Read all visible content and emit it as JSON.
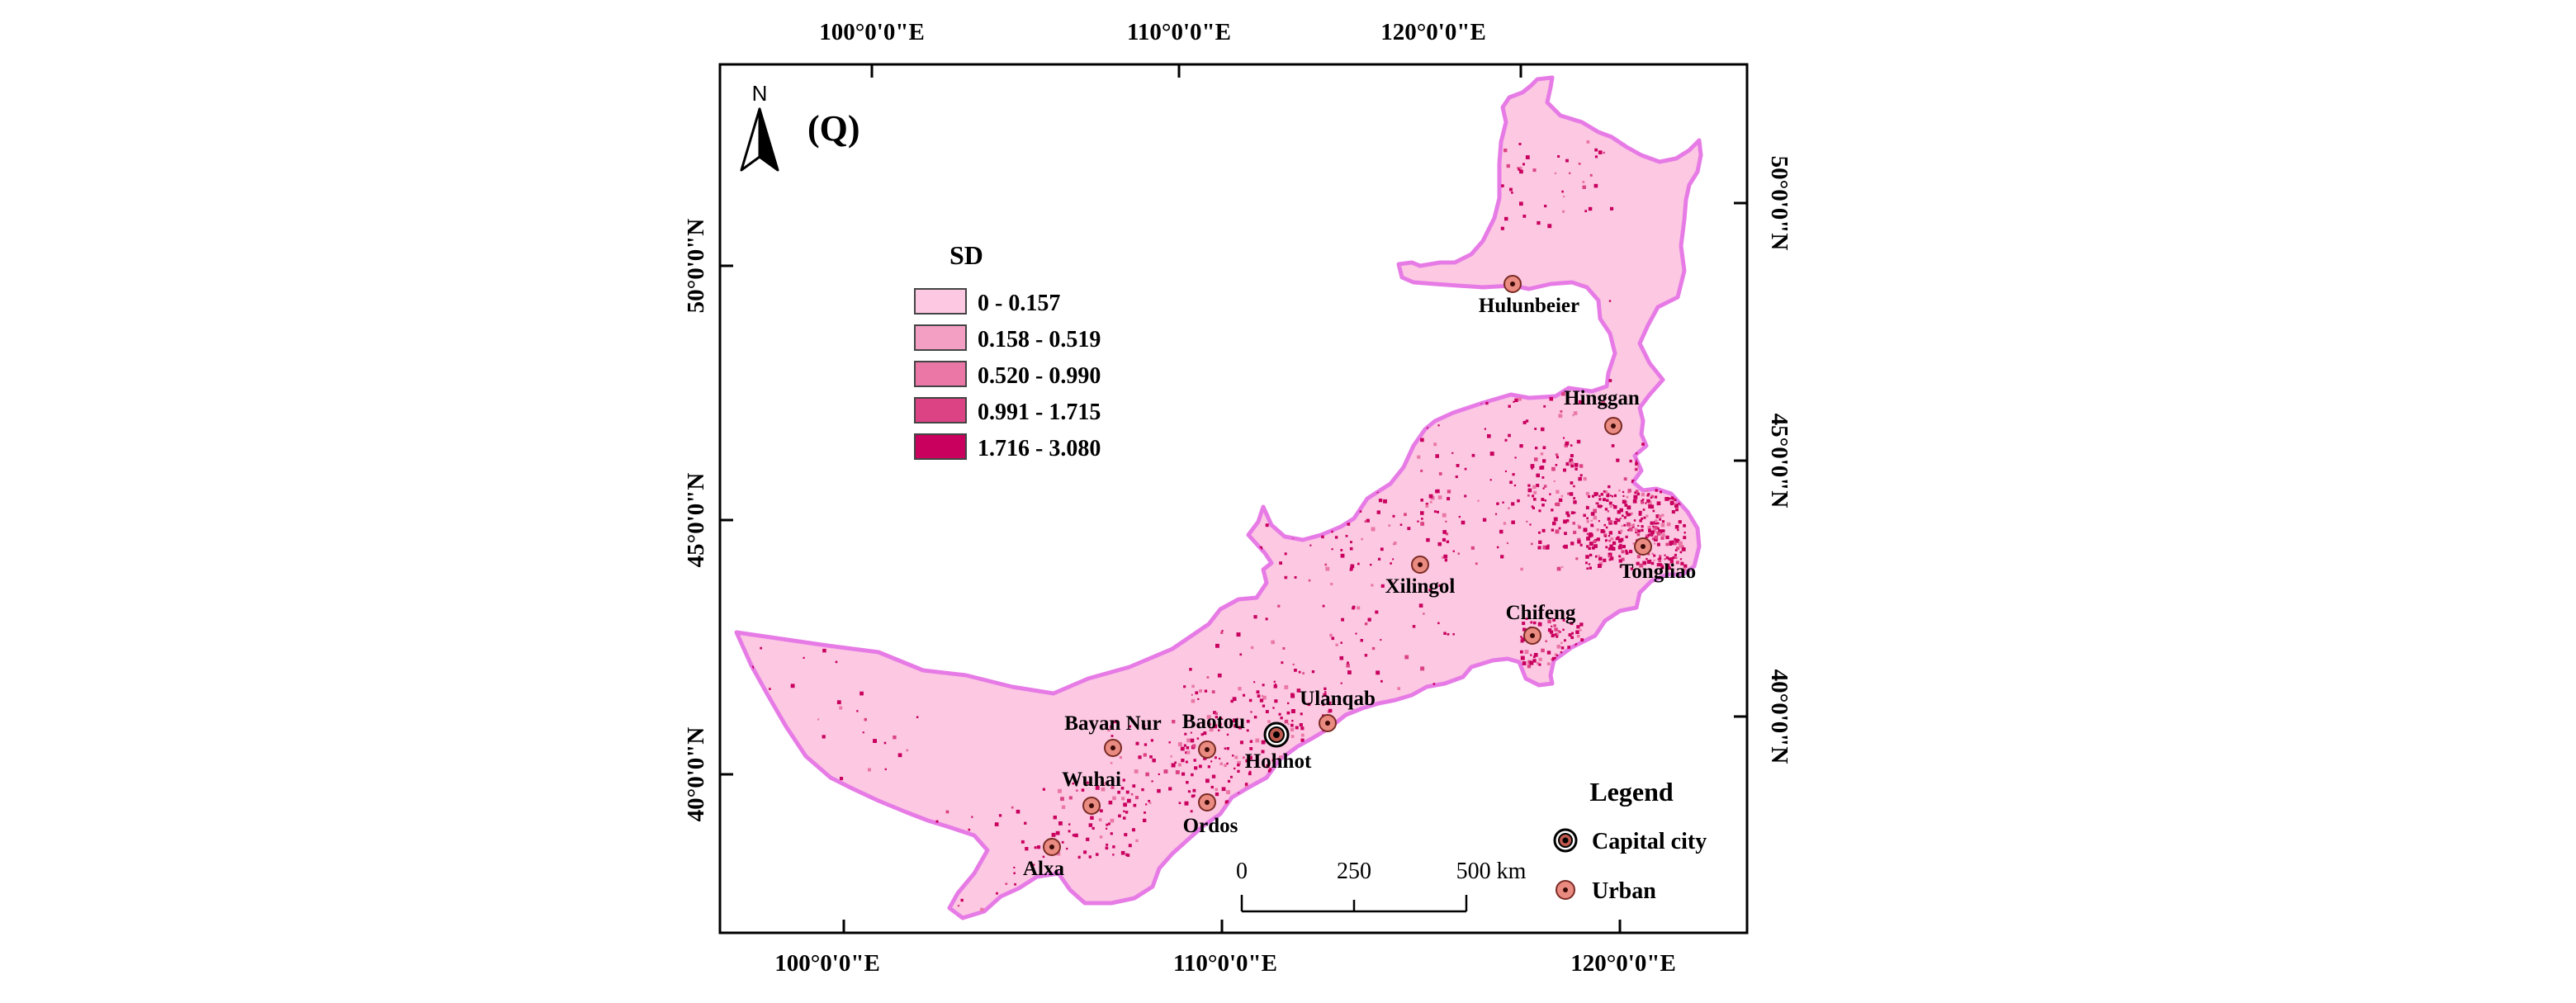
{
  "panel_label": "(Q)",
  "north_arrow": {
    "label": "N",
    "icon": "north-arrow-icon"
  },
  "axes": {
    "top_ticks": [
      "100°0'0\"E",
      "110°0'0\"E",
      "120°0'0\"E"
    ],
    "bottom_ticks": [
      "100°0'0\"E",
      "110°0'0\"E",
      "120°0'0\"E"
    ],
    "left_ticks": [
      "50°0'0\"N",
      "45°0'0\"N",
      "40°0'0\"N"
    ],
    "right_ticks": [
      "50°0'0\"N",
      "45°0'0\"N",
      "40°0'0\"N"
    ]
  },
  "sd_legend": {
    "title": "SD",
    "classes": [
      {
        "label": "0 - 0.157",
        "color": "#fcc8e2"
      },
      {
        "label": "0.158 - 0.519",
        "color": "#f39ec3"
      },
      {
        "label": "0.520 - 0.990",
        "color": "#ea77a6"
      },
      {
        "label": "0.991 - 1.715",
        "color": "#dc4384"
      },
      {
        "label": "1.716 - 3.080",
        "color": "#c9005e"
      }
    ]
  },
  "cities": [
    {
      "name": "Hulunbeier",
      "type": "Urban"
    },
    {
      "name": "Hinggan",
      "type": "Urban"
    },
    {
      "name": "Tongliao",
      "type": "Urban"
    },
    {
      "name": "Xilingol",
      "type": "Urban"
    },
    {
      "name": "Chifeng",
      "type": "Urban"
    },
    {
      "name": "Ulanqab",
      "type": "Urban"
    },
    {
      "name": "Baotou",
      "type": "Urban"
    },
    {
      "name": "Hohhot",
      "type": "Capital city"
    },
    {
      "name": "Bayan Nur",
      "type": "Urban"
    },
    {
      "name": "Wuhai",
      "type": "Urban"
    },
    {
      "name": "Ordos",
      "type": "Urban"
    },
    {
      "name": "Alxa",
      "type": "Urban"
    }
  ],
  "map_legend": {
    "title": "Legend",
    "items": [
      {
        "label": "Capital city",
        "icon": "capital-city-icon"
      },
      {
        "label": "Urban",
        "icon": "urban-icon"
      }
    ]
  },
  "scale_bar": {
    "labels": [
      "0",
      "250",
      "500 km"
    ]
  },
  "colors": {
    "region_fill": "#fcc8e2",
    "region_outline": "#e77be6",
    "hotspot": "#c9005e",
    "urban_marker": "#e98b80"
  }
}
